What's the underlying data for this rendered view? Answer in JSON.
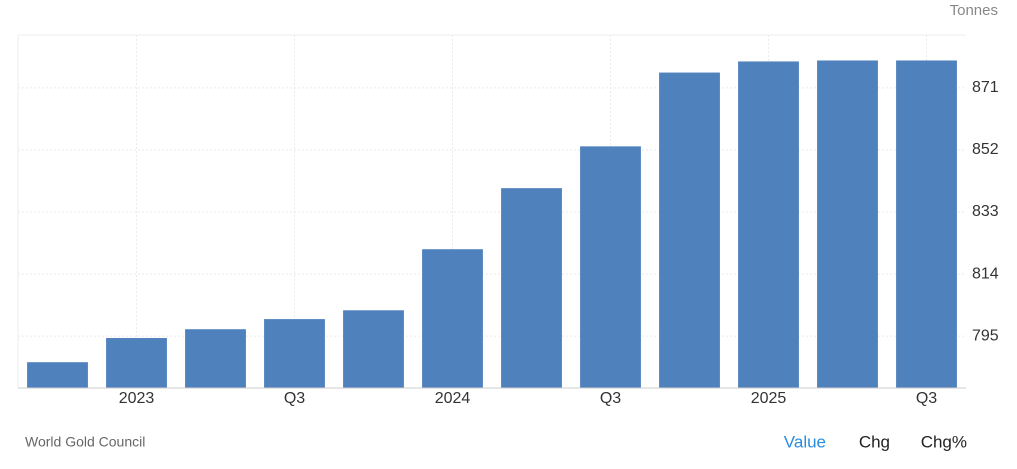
{
  "chart_data": {
    "type": "bar",
    "unit_label": "Tonnes",
    "source": "World Gold Council",
    "categories": [
      null,
      "2023",
      null,
      "Q3",
      null,
      "2024",
      null,
      "Q3",
      null,
      "2025",
      null,
      "Q3"
    ],
    "values": [
      787.0,
      794.4,
      797.1,
      800.2,
      802.9,
      821.6,
      840.3,
      853.1,
      875.7,
      879.1,
      879.4,
      879.4
    ],
    "color": "#4f81bd",
    "ylim": [
      779.1,
      887.2
    ],
    "yticks": [
      795,
      814,
      833,
      852,
      871
    ],
    "grid": true
  },
  "controls": [
    "Value",
    "Chg",
    "Chg%"
  ]
}
